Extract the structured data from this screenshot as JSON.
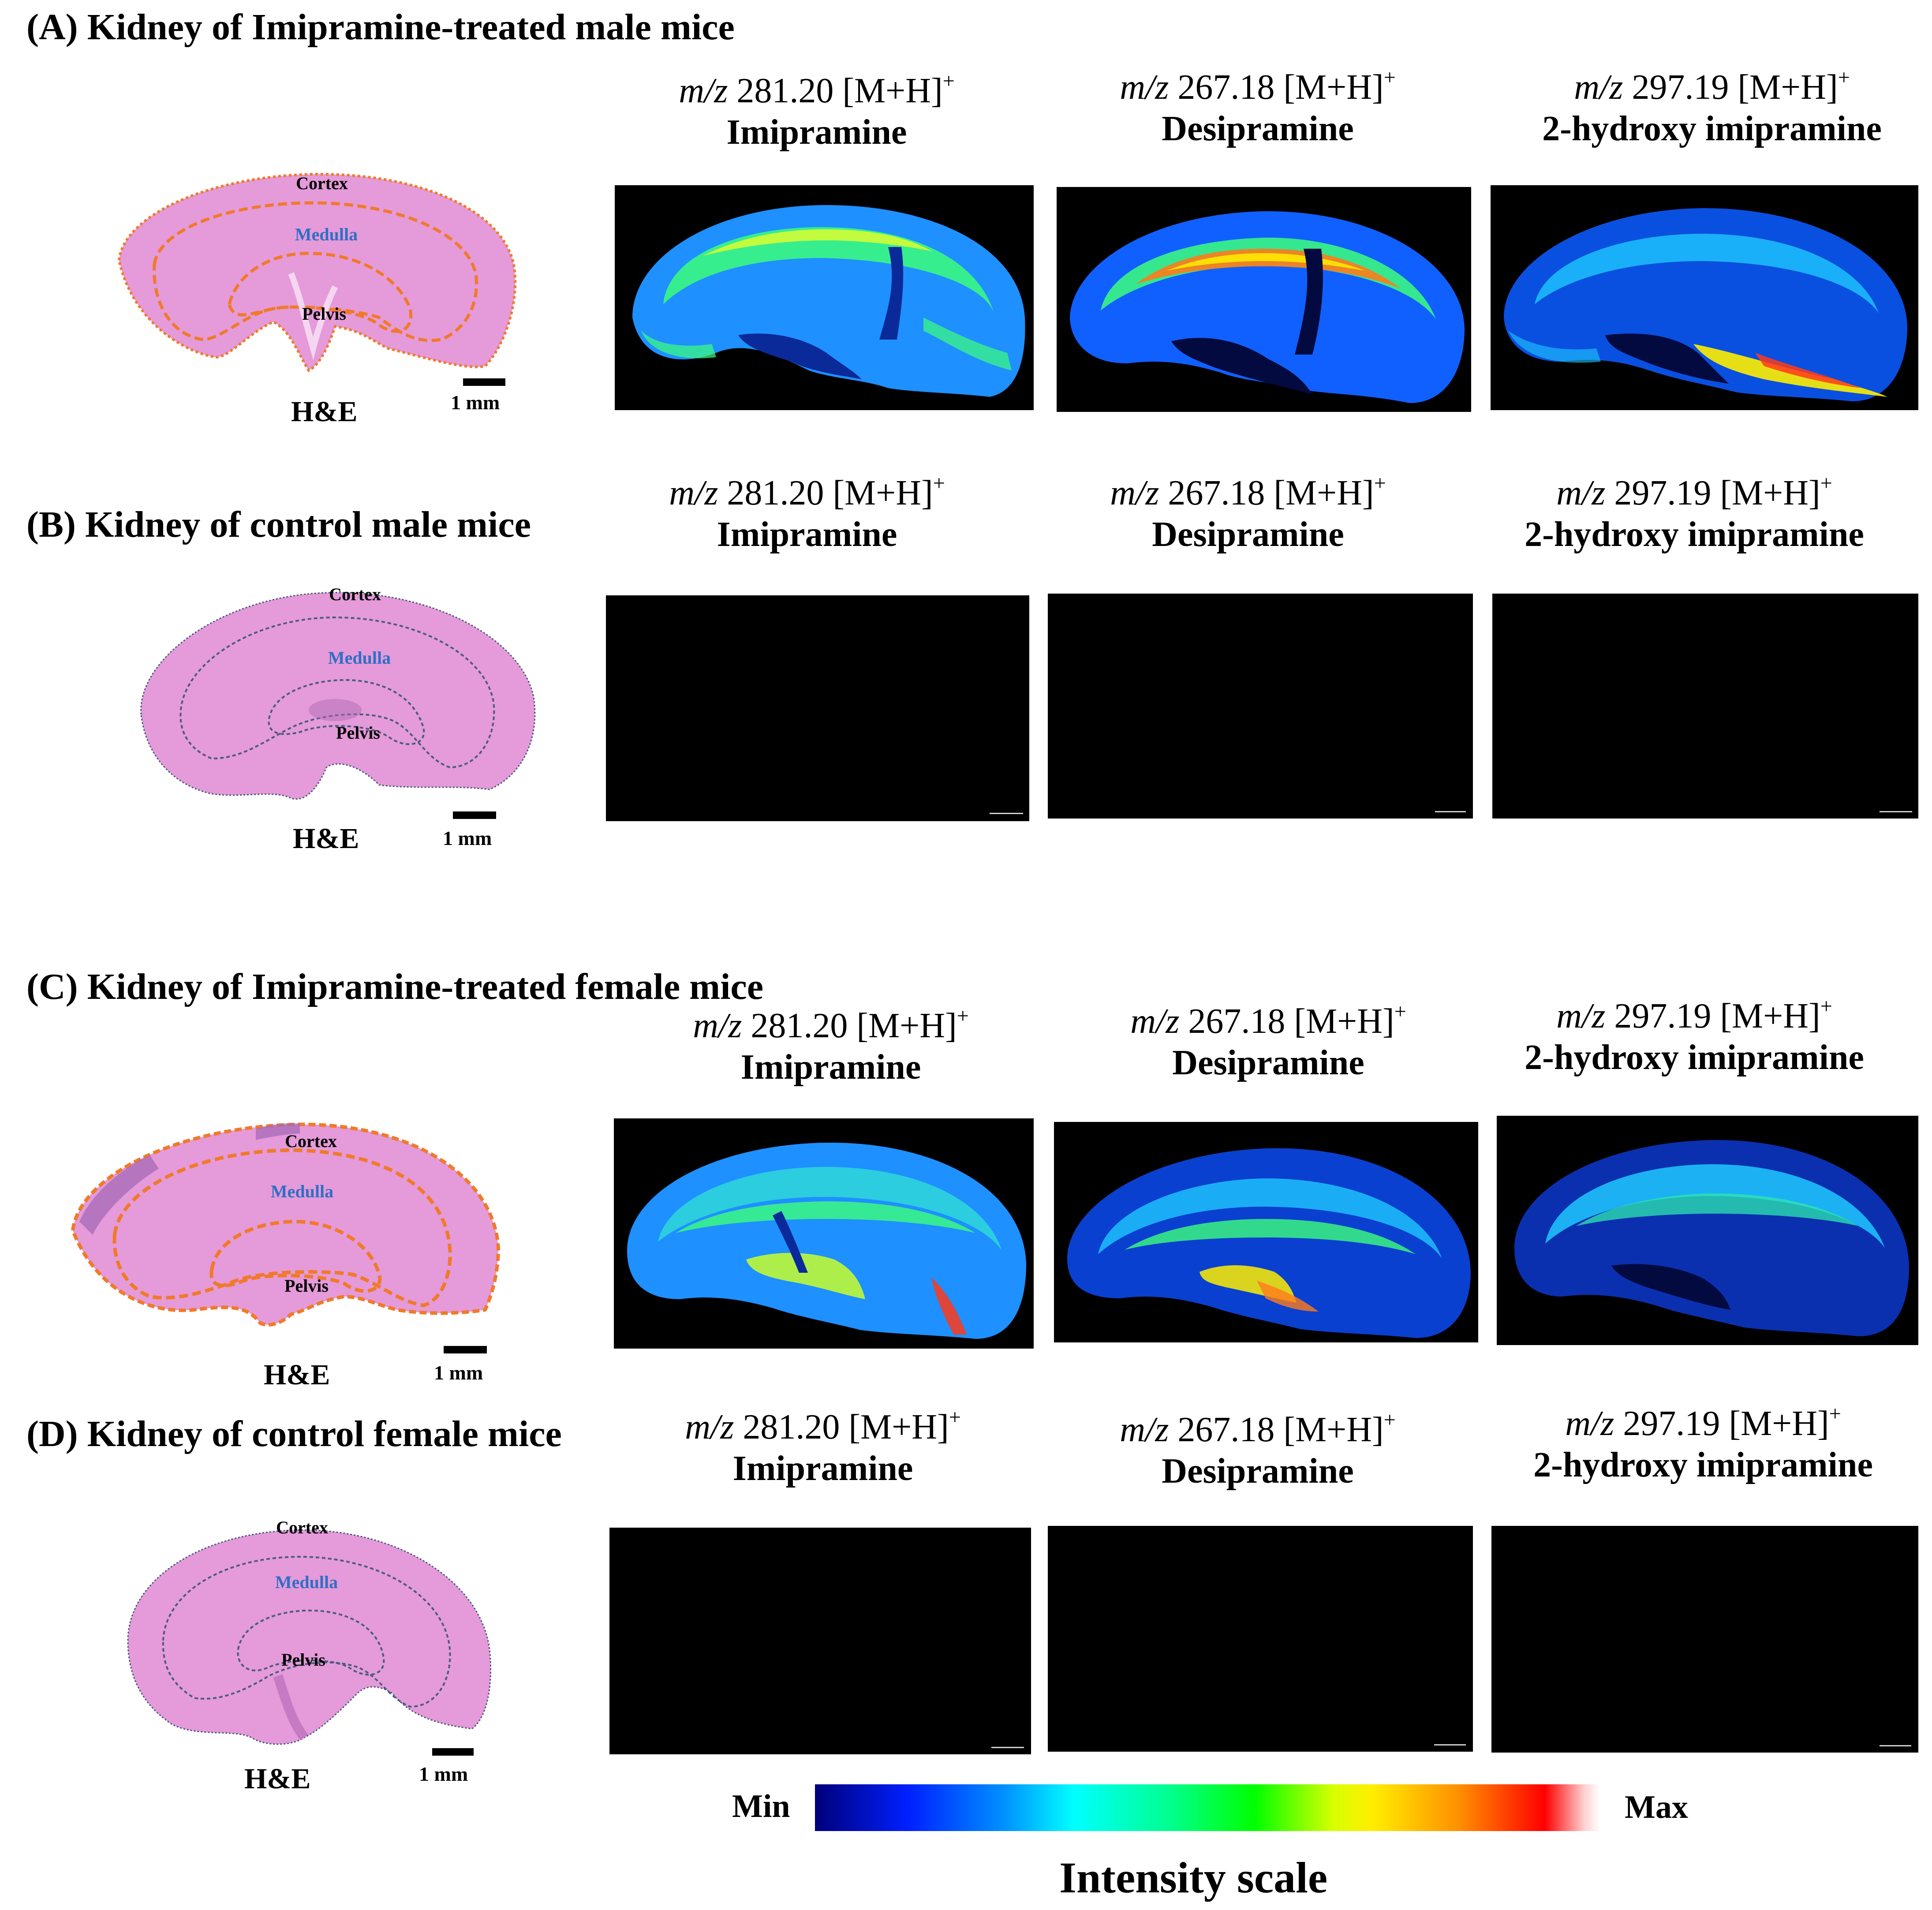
{
  "panels": {
    "A": {
      "title": "(A) Kidney of Imipramine-treated male mice"
    },
    "B": {
      "title": "(B) Kidney of control male mice"
    },
    "C": {
      "title": "(C) Kidney of Imipramine-treated female mice"
    },
    "D": {
      "title": "(D) Kidney of control female mice"
    }
  },
  "columns": [
    {
      "mz_prefix": "m/z",
      "mz_value": " 281.20 [M+H]",
      "charge": "+",
      "compound": "Imipramine"
    },
    {
      "mz_prefix": "m/z",
      "mz_value": " 267.18 [M+H]",
      "charge": "+",
      "compound": "Desipramine"
    },
    {
      "mz_prefix": "m/z",
      "mz_value": " 297.19 [M+H]",
      "charge": "+",
      "compound": "2-hydroxy imipramine"
    }
  ],
  "he": {
    "cortex": "Cortex",
    "medulla": "Medulla",
    "pelvis": "Pelvis",
    "stain_label": "H&E",
    "scale_label": "1 mm"
  },
  "intensity_scale": {
    "min_label": "Min",
    "max_label": "Max",
    "title": "Intensity scale"
  },
  "colors": {
    "tissue": "#e59ad9",
    "tissue_dark": "#c77ac4",
    "outline_treated": "#f07a2a",
    "outline_control": "#4a5a80",
    "medulla_label": "#2f6fc4",
    "msi_background": "#000000"
  }
}
